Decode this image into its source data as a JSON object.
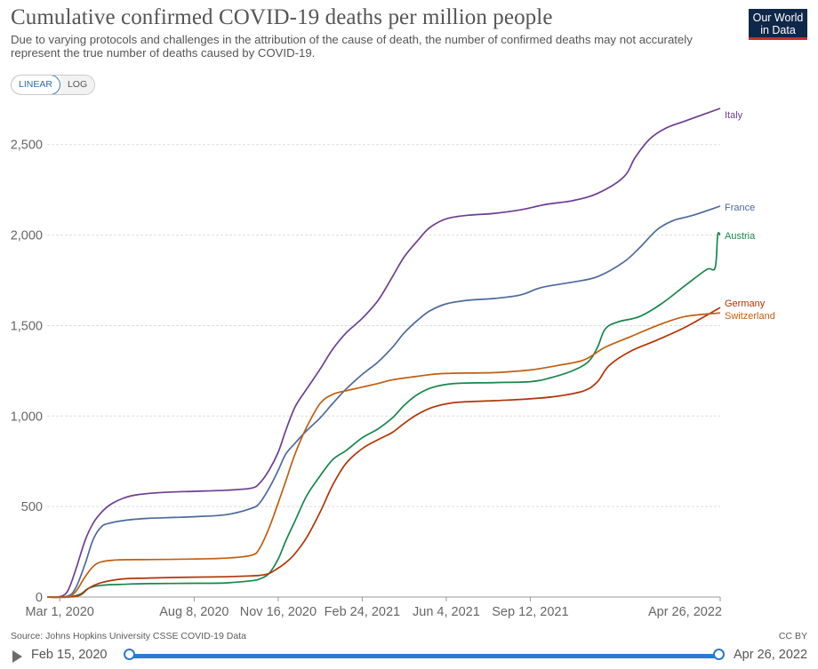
{
  "header": {
    "title": "Cumulative confirmed COVID-19 deaths per million people",
    "subtitle": "Due to varying protocols and challenges in the attribution of the cause of death, the number of confirmed deaths may not accurately represent the true number of deaths caused by COVID-19.",
    "logo_line1": "Our World",
    "logo_line2": "in Data"
  },
  "controls": {
    "linear_label": "LINEAR",
    "log_label": "LOG"
  },
  "footer": {
    "source": "Source: Johns Hopkins University CSSE COVID-19 Data",
    "license": "CC BY"
  },
  "timeline": {
    "start_label": "Feb 15, 2020",
    "end_label": "Apr 26, 2022"
  },
  "colors": {
    "Italy": "#6d3e91",
    "France": "#4c6a9c",
    "Austria": "#18864b",
    "Germany": "#b13507",
    "Switzerland": "#c15e11",
    "grid": "#dddddd",
    "axis_text": "#666666"
  },
  "chart_data": {
    "type": "line",
    "x_start": "2020-02-15",
    "x_end": "2022-04-26",
    "ylim": [
      0,
      2700
    ],
    "grid": true,
    "legend": "inline labels at line ends (right)",
    "y_ticks": [
      0,
      500,
      1000,
      1500,
      2000,
      2500
    ],
    "y_tick_labels": [
      "0",
      "500",
      "1,000",
      "1,500",
      "2,000",
      "2,500"
    ],
    "x_ticks": [
      {
        "date": "2020-03-01",
        "label": "Mar 1, 2020"
      },
      {
        "date": "2020-08-08",
        "label": "Aug 8, 2020"
      },
      {
        "date": "2020-11-16",
        "label": "Nov 16, 2020"
      },
      {
        "date": "2021-02-24",
        "label": "Feb 24, 2021"
      },
      {
        "date": "2021-06-04",
        "label": "Jun 4, 2021"
      },
      {
        "date": "2021-09-12",
        "label": "Sep 12, 2021"
      },
      {
        "date": "2022-04-26",
        "label": "Apr 26, 2022"
      }
    ],
    "series": [
      {
        "name": "Italy",
        "points": [
          [
            "2020-02-15",
            0
          ],
          [
            "2020-02-28",
            0
          ],
          [
            "2020-03-10",
            30
          ],
          [
            "2020-03-20",
            150
          ],
          [
            "2020-03-31",
            310
          ],
          [
            "2020-04-10",
            410
          ],
          [
            "2020-04-20",
            470
          ],
          [
            "2020-04-30",
            510
          ],
          [
            "2020-05-15",
            545
          ],
          [
            "2020-06-01",
            565
          ],
          [
            "2020-07-01",
            578
          ],
          [
            "2020-08-08",
            584
          ],
          [
            "2020-09-15",
            590
          ],
          [
            "2020-10-15",
            602
          ],
          [
            "2020-10-25",
            630
          ],
          [
            "2020-11-05",
            700
          ],
          [
            "2020-11-16",
            800
          ],
          [
            "2020-11-25",
            920
          ],
          [
            "2020-12-06",
            1050
          ],
          [
            "2020-12-20",
            1150
          ],
          [
            "2021-01-05",
            1260
          ],
          [
            "2021-01-20",
            1370
          ],
          [
            "2021-02-05",
            1460
          ],
          [
            "2021-02-24",
            1540
          ],
          [
            "2021-03-15",
            1640
          ],
          [
            "2021-04-01",
            1770
          ],
          [
            "2021-04-15",
            1880
          ],
          [
            "2021-05-01",
            1970
          ],
          [
            "2021-05-15",
            2040
          ],
          [
            "2021-06-04",
            2090
          ],
          [
            "2021-07-01",
            2110
          ],
          [
            "2021-08-01",
            2120
          ],
          [
            "2021-09-01",
            2140
          ],
          [
            "2021-10-01",
            2170
          ],
          [
            "2021-11-01",
            2190
          ],
          [
            "2021-12-01",
            2230
          ],
          [
            "2022-01-01",
            2320
          ],
          [
            "2022-01-15",
            2430
          ],
          [
            "2022-02-01",
            2530
          ],
          [
            "2022-02-20",
            2590
          ],
          [
            "2022-03-15",
            2630
          ],
          [
            "2022-04-26",
            2700
          ]
        ]
      },
      {
        "name": "France",
        "points": [
          [
            "2020-02-15",
            0
          ],
          [
            "2020-03-10",
            5
          ],
          [
            "2020-03-20",
            50
          ],
          [
            "2020-03-31",
            180
          ],
          [
            "2020-04-10",
            320
          ],
          [
            "2020-04-20",
            390
          ],
          [
            "2020-05-01",
            410
          ],
          [
            "2020-05-20",
            425
          ],
          [
            "2020-06-15",
            435
          ],
          [
            "2020-07-15",
            440
          ],
          [
            "2020-08-08",
            444
          ],
          [
            "2020-09-15",
            455
          ],
          [
            "2020-10-15",
            490
          ],
          [
            "2020-10-25",
            520
          ],
          [
            "2020-11-05",
            600
          ],
          [
            "2020-11-16",
            700
          ],
          [
            "2020-11-25",
            790
          ],
          [
            "2020-12-06",
            850
          ],
          [
            "2020-12-20",
            920
          ],
          [
            "2021-01-05",
            990
          ],
          [
            "2021-01-20",
            1070
          ],
          [
            "2021-02-05",
            1150
          ],
          [
            "2021-02-24",
            1230
          ],
          [
            "2021-03-15",
            1300
          ],
          [
            "2021-04-01",
            1380
          ],
          [
            "2021-04-15",
            1460
          ],
          [
            "2021-05-01",
            1530
          ],
          [
            "2021-05-15",
            1580
          ],
          [
            "2021-06-04",
            1620
          ],
          [
            "2021-07-01",
            1640
          ],
          [
            "2021-08-01",
            1650
          ],
          [
            "2021-09-01",
            1670
          ],
          [
            "2021-09-25",
            1710
          ],
          [
            "2021-11-01",
            1740
          ],
          [
            "2021-12-01",
            1770
          ],
          [
            "2022-01-01",
            1850
          ],
          [
            "2022-01-20",
            1930
          ],
          [
            "2022-02-10",
            2030
          ],
          [
            "2022-03-01",
            2080
          ],
          [
            "2022-03-25",
            2110
          ],
          [
            "2022-04-26",
            2160
          ]
        ]
      },
      {
        "name": "Austria",
        "points": [
          [
            "2020-02-15",
            0
          ],
          [
            "2020-03-10",
            0
          ],
          [
            "2020-03-25",
            15
          ],
          [
            "2020-04-05",
            50
          ],
          [
            "2020-04-20",
            65
          ],
          [
            "2020-05-15",
            70
          ],
          [
            "2020-06-15",
            74
          ],
          [
            "2020-08-08",
            76
          ],
          [
            "2020-09-15",
            78
          ],
          [
            "2020-10-15",
            90
          ],
          [
            "2020-10-25",
            100
          ],
          [
            "2020-11-05",
            130
          ],
          [
            "2020-11-16",
            210
          ],
          [
            "2020-11-25",
            310
          ],
          [
            "2020-12-06",
            420
          ],
          [
            "2020-12-20",
            560
          ],
          [
            "2021-01-05",
            670
          ],
          [
            "2021-01-20",
            760
          ],
          [
            "2021-02-05",
            810
          ],
          [
            "2021-02-24",
            880
          ],
          [
            "2021-03-15",
            930
          ],
          [
            "2021-04-01",
            990
          ],
          [
            "2021-04-15",
            1060
          ],
          [
            "2021-05-01",
            1120
          ],
          [
            "2021-05-20",
            1160
          ],
          [
            "2021-06-15",
            1180
          ],
          [
            "2021-08-01",
            1185
          ],
          [
            "2021-09-12",
            1190
          ],
          [
            "2021-10-05",
            1210
          ],
          [
            "2021-11-01",
            1250
          ],
          [
            "2021-11-20",
            1300
          ],
          [
            "2021-12-01",
            1380
          ],
          [
            "2021-12-10",
            1480
          ],
          [
            "2021-12-25",
            1520
          ],
          [
            "2022-01-20",
            1550
          ],
          [
            "2022-02-15",
            1620
          ],
          [
            "2022-03-15",
            1720
          ],
          [
            "2022-04-10",
            1810
          ],
          [
            "2022-04-20",
            1820
          ],
          [
            "2022-04-23",
            2000
          ],
          [
            "2022-04-26",
            2000
          ]
        ]
      },
      {
        "name": "Germany",
        "points": [
          [
            "2020-02-15",
            0
          ],
          [
            "2020-03-10",
            0
          ],
          [
            "2020-03-25",
            10
          ],
          [
            "2020-04-05",
            50
          ],
          [
            "2020-04-20",
            80
          ],
          [
            "2020-05-15",
            100
          ],
          [
            "2020-06-15",
            105
          ],
          [
            "2020-08-08",
            110
          ],
          [
            "2020-09-15",
            112
          ],
          [
            "2020-10-15",
            117
          ],
          [
            "2020-10-25",
            120
          ],
          [
            "2020-11-05",
            130
          ],
          [
            "2020-11-16",
            160
          ],
          [
            "2020-11-25",
            190
          ],
          [
            "2020-12-06",
            240
          ],
          [
            "2020-12-20",
            330
          ],
          [
            "2021-01-05",
            470
          ],
          [
            "2021-01-20",
            620
          ],
          [
            "2021-02-05",
            740
          ],
          [
            "2021-02-24",
            820
          ],
          [
            "2021-03-15",
            870
          ],
          [
            "2021-04-01",
            910
          ],
          [
            "2021-04-15",
            960
          ],
          [
            "2021-05-01",
            1010
          ],
          [
            "2021-05-20",
            1050
          ],
          [
            "2021-06-15",
            1075
          ],
          [
            "2021-08-01",
            1085
          ],
          [
            "2021-09-12",
            1095
          ],
          [
            "2021-10-15",
            1110
          ],
          [
            "2021-11-15",
            1140
          ],
          [
            "2021-12-01",
            1190
          ],
          [
            "2021-12-15",
            1280
          ],
          [
            "2022-01-10",
            1360
          ],
          [
            "2022-02-10",
            1420
          ],
          [
            "2022-03-15",
            1490
          ],
          [
            "2022-04-26",
            1600
          ]
        ]
      },
      {
        "name": "Switzerland",
        "points": [
          [
            "2020-02-15",
            0
          ],
          [
            "2020-03-10",
            0
          ],
          [
            "2020-03-20",
            30
          ],
          [
            "2020-03-31",
            110
          ],
          [
            "2020-04-10",
            170
          ],
          [
            "2020-04-20",
            195
          ],
          [
            "2020-05-10",
            205
          ],
          [
            "2020-06-15",
            207
          ],
          [
            "2020-08-08",
            210
          ],
          [
            "2020-09-15",
            215
          ],
          [
            "2020-10-15",
            230
          ],
          [
            "2020-10-25",
            270
          ],
          [
            "2020-11-05",
            380
          ],
          [
            "2020-11-16",
            520
          ],
          [
            "2020-11-25",
            640
          ],
          [
            "2020-12-06",
            790
          ],
          [
            "2020-12-20",
            940
          ],
          [
            "2021-01-05",
            1070
          ],
          [
            "2021-01-20",
            1120
          ],
          [
            "2021-02-05",
            1140
          ],
          [
            "2021-02-24",
            1160
          ],
          [
            "2021-03-15",
            1180
          ],
          [
            "2021-04-01",
            1200
          ],
          [
            "2021-05-01",
            1220
          ],
          [
            "2021-06-01",
            1235
          ],
          [
            "2021-08-01",
            1240
          ],
          [
            "2021-09-12",
            1255
          ],
          [
            "2021-10-15",
            1280
          ],
          [
            "2021-11-15",
            1310
          ],
          [
            "2021-12-10",
            1380
          ],
          [
            "2022-01-10",
            1440
          ],
          [
            "2022-02-10",
            1500
          ],
          [
            "2022-03-15",
            1550
          ],
          [
            "2022-04-26",
            1570
          ]
        ]
      }
    ]
  }
}
